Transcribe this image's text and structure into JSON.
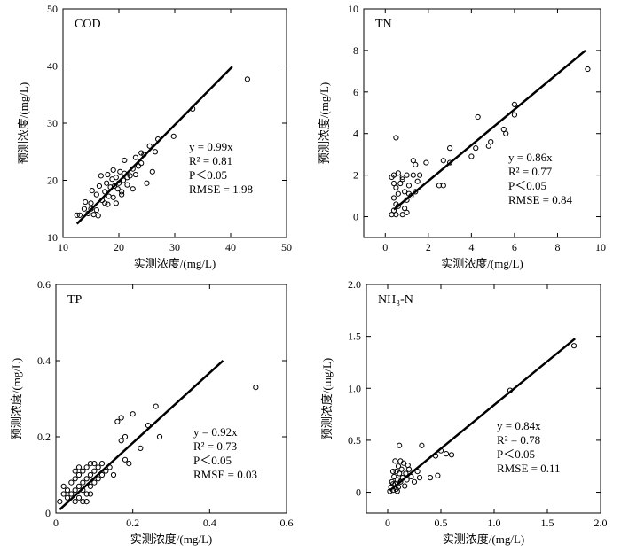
{
  "chart_data": [
    {
      "type": "scatter",
      "title": "COD",
      "xlabel": "实测浓度/(mg/L)",
      "ylabel": "预测浓度/(mg/L)",
      "xlim": [
        10,
        50
      ],
      "ylim": [
        10,
        50
      ],
      "xticks": [
        "10",
        "20",
        "30",
        "40",
        "50"
      ],
      "yticks": [
        "10",
        "20",
        "30",
        "40",
        "50"
      ],
      "fit_line": {
        "slope": 0.99,
        "x_start": 12.5,
        "x_end": 40.3
      },
      "stats": {
        "eq_label": "y = 0.99x",
        "r2_label": "R² = 0.81",
        "p_label": "P＜0.05",
        "rmse_label": "RMSE = 1.98"
      },
      "points": [
        [
          12.5,
          13.9
        ],
        [
          13.0,
          13.9
        ],
        [
          13.8,
          15.0
        ],
        [
          14.0,
          16.2
        ],
        [
          14.5,
          14.2
        ],
        [
          15.0,
          15.0
        ],
        [
          15.5,
          14.0
        ],
        [
          16.0,
          14.8
        ],
        [
          15.2,
          18.2
        ],
        [
          16.0,
          17.5
        ],
        [
          16.5,
          19.0
        ],
        [
          16.8,
          20.8
        ],
        [
          17.0,
          16.5
        ],
        [
          17.5,
          18.0
        ],
        [
          17.8,
          19.5
        ],
        [
          18.0,
          21.0
        ],
        [
          18.2,
          17.2
        ],
        [
          18.5,
          18.8
        ],
        [
          18.8,
          20.2
        ],
        [
          19.0,
          17.0
        ],
        [
          19.2,
          19.0
        ],
        [
          19.5,
          20.5
        ],
        [
          19.8,
          18.5
        ],
        [
          20.0,
          19.5
        ],
        [
          20.2,
          21.5
        ],
        [
          20.5,
          18.0
        ],
        [
          20.8,
          20.0
        ],
        [
          21.0,
          21.2
        ],
        [
          21.5,
          19.2
        ],
        [
          22.0,
          20.8
        ],
        [
          22.5,
          22.0
        ],
        [
          23.0,
          21.0
        ],
        [
          23.5,
          22.5
        ],
        [
          24.0,
          23.0
        ],
        [
          24.5,
          24.5
        ],
        [
          25.0,
          19.5
        ],
        [
          25.5,
          26.0
        ],
        [
          26.0,
          21.5
        ],
        [
          26.5,
          25.0
        ],
        [
          27.0,
          27.2
        ],
        [
          24.0,
          24.8
        ],
        [
          22.5,
          18.5
        ],
        [
          19.5,
          16.0
        ],
        [
          20.5,
          17.5
        ],
        [
          21.0,
          23.5
        ],
        [
          23.0,
          24.0
        ],
        [
          17.5,
          16.0
        ],
        [
          16.3,
          13.8
        ],
        [
          15.0,
          16.0
        ],
        [
          18.0,
          15.8
        ],
        [
          21.5,
          20.5
        ],
        [
          19.0,
          21.8
        ],
        [
          29.8,
          27.7
        ],
        [
          33.2,
          32.5
        ],
        [
          43.0,
          37.7
        ]
      ]
    },
    {
      "type": "scatter",
      "title": "TN",
      "xlabel": "实测浓度/(mg/L)",
      "ylabel": "预测浓度/(mg/L)",
      "xlim": [
        -1,
        10
      ],
      "ylim": [
        -1,
        10
      ],
      "xticks": [
        "0",
        "2",
        "4",
        "6",
        "8",
        "10"
      ],
      "yticks": [
        "0",
        "2",
        "4",
        "6",
        "8",
        "10"
      ],
      "fit_line": {
        "slope": 0.86,
        "x_start": 0.4,
        "x_end": 9.3
      },
      "stats": {
        "eq_label": "y = 0.86x",
        "r2_label": "R² = 0.77",
        "p_label": "P＜0.05",
        "rmse_label": "RMSE = 0.84"
      },
      "points": [
        [
          0.3,
          0.1
        ],
        [
          0.4,
          0.3
        ],
        [
          0.5,
          0.6
        ],
        [
          0.4,
          0.9
        ],
        [
          0.6,
          1.1
        ],
        [
          0.5,
          1.4
        ],
        [
          0.7,
          1.6
        ],
        [
          0.8,
          1.9
        ],
        [
          0.6,
          2.1
        ],
        [
          0.9,
          1.2
        ],
        [
          1.0,
          0.8
        ],
        [
          1.1,
          1.5
        ],
        [
          1.2,
          1.0
        ],
        [
          1.3,
          2.0
        ],
        [
          1.4,
          1.2
        ],
        [
          1.5,
          1.7
        ],
        [
          0.3,
          1.9
        ],
        [
          0.4,
          2.0
        ],
        [
          0.5,
          0.1
        ],
        [
          0.8,
          0.1
        ],
        [
          1.0,
          0.2
        ],
        [
          0.6,
          0.5
        ],
        [
          0.9,
          0.4
        ],
        [
          1.1,
          1.1
        ],
        [
          1.3,
          2.7
        ],
        [
          1.4,
          2.5
        ],
        [
          1.6,
          2.0
        ],
        [
          0.8,
          1.8
        ],
        [
          0.4,
          1.6
        ],
        [
          1.0,
          2.0
        ],
        [
          1.9,
          2.6
        ],
        [
          2.5,
          1.5
        ],
        [
          2.7,
          1.5
        ],
        [
          2.7,
          2.7
        ],
        [
          3.0,
          3.3
        ],
        [
          3.0,
          2.6
        ],
        [
          4.0,
          2.9
        ],
        [
          4.2,
          3.3
        ],
        [
          4.3,
          4.8
        ],
        [
          4.8,
          3.4
        ],
        [
          4.9,
          3.6
        ],
        [
          5.5,
          4.2
        ],
        [
          5.6,
          4.0
        ],
        [
          6.0,
          4.9
        ],
        [
          6.0,
          5.4
        ],
        [
          0.5,
          3.8
        ],
        [
          9.4,
          7.1
        ]
      ]
    },
    {
      "type": "scatter",
      "title": "TP",
      "xlabel": "实测浓度/(mg/L)",
      "ylabel": "预测浓度/(mg/L)",
      "xlim": [
        0,
        0.6
      ],
      "ylim": [
        0,
        0.6
      ],
      "xticks": [
        "0",
        "0.2",
        "0.4",
        "0.6"
      ],
      "yticks": [
        "0",
        "0.2",
        "0.4",
        "0.6"
      ],
      "fit_line": {
        "slope": 0.92,
        "x_start": 0.01,
        "x_end": 0.435
      },
      "stats": {
        "eq_label": "y = 0.92x",
        "r2_label": "R² = 0.73",
        "p_label": "P＜0.05",
        "rmse_label": "RMSE = 0.03"
      },
      "points": [
        [
          0.01,
          0.03
        ],
        [
          0.02,
          0.05
        ],
        [
          0.02,
          0.07
        ],
        [
          0.03,
          0.04
        ],
        [
          0.03,
          0.06
        ],
        [
          0.04,
          0.05
        ],
        [
          0.04,
          0.08
        ],
        [
          0.05,
          0.03
        ],
        [
          0.05,
          0.06
        ],
        [
          0.05,
          0.09
        ],
        [
          0.06,
          0.07
        ],
        [
          0.06,
          0.1
        ],
        [
          0.07,
          0.06
        ],
        [
          0.07,
          0.08
        ],
        [
          0.07,
          0.11
        ],
        [
          0.08,
          0.05
        ],
        [
          0.08,
          0.09
        ],
        [
          0.08,
          0.12
        ],
        [
          0.09,
          0.07
        ],
        [
          0.09,
          0.1
        ],
        [
          0.1,
          0.08
        ],
        [
          0.1,
          0.11
        ],
        [
          0.1,
          0.13
        ],
        [
          0.11,
          0.09
        ],
        [
          0.11,
          0.12
        ],
        [
          0.12,
          0.1
        ],
        [
          0.12,
          0.13
        ],
        [
          0.13,
          0.11
        ],
        [
          0.14,
          0.12
        ],
        [
          0.15,
          0.1
        ],
        [
          0.06,
          0.04
        ],
        [
          0.07,
          0.03
        ],
        [
          0.08,
          0.03
        ],
        [
          0.09,
          0.05
        ],
        [
          0.09,
          0.13
        ],
        [
          0.06,
          0.12
        ],
        [
          0.05,
          0.11
        ],
        [
          0.16,
          0.24
        ],
        [
          0.17,
          0.25
        ],
        [
          0.17,
          0.19
        ],
        [
          0.18,
          0.2
        ],
        [
          0.18,
          0.14
        ],
        [
          0.19,
          0.13
        ],
        [
          0.2,
          0.26
        ],
        [
          0.22,
          0.17
        ],
        [
          0.24,
          0.23
        ],
        [
          0.26,
          0.28
        ],
        [
          0.27,
          0.2
        ],
        [
          0.52,
          0.33
        ]
      ]
    },
    {
      "type": "scatter",
      "title": "NH₃-N",
      "xlabel": "实测浓度/(mg/L)",
      "ylabel": "预测浓度/(mg/L)",
      "xlim": [
        -0.2,
        2.0
      ],
      "ylim": [
        -0.2,
        2.0
      ],
      "xticks": [
        "0",
        "0.5",
        "1.0",
        "1.5",
        "2.0"
      ],
      "yticks": [
        "0",
        "0.5",
        "1.0",
        "1.5",
        "2.0"
      ],
      "fit_line": {
        "slope": 0.84,
        "x_start": 0.02,
        "x_end": 1.76
      },
      "stats": {
        "eq_label": "y = 0.84x",
        "r2_label": "R² = 0.78",
        "p_label": "P＜0.05",
        "rmse_label": "RMSE = 0.11"
      },
      "points": [
        [
          0.02,
          0.01
        ],
        [
          0.03,
          0.05
        ],
        [
          0.04,
          0.1
        ],
        [
          0.05,
          0.02
        ],
        [
          0.06,
          0.15
        ],
        [
          0.07,
          0.08
        ],
        [
          0.08,
          0.2
        ],
        [
          0.08,
          0.03
        ],
        [
          0.09,
          0.12
        ],
        [
          0.1,
          0.25
        ],
        [
          0.1,
          0.05
        ],
        [
          0.11,
          0.18
        ],
        [
          0.12,
          0.1
        ],
        [
          0.12,
          0.3
        ],
        [
          0.13,
          0.22
        ],
        [
          0.14,
          0.14
        ],
        [
          0.15,
          0.28
        ],
        [
          0.16,
          0.06
        ],
        [
          0.17,
          0.18
        ],
        [
          0.18,
          0.12
        ],
        [
          0.19,
          0.26
        ],
        [
          0.2,
          0.22
        ],
        [
          0.05,
          0.08
        ],
        [
          0.09,
          0.01
        ],
        [
          0.11,
          0.45
        ],
        [
          0.22,
          0.15
        ],
        [
          0.25,
          0.1
        ],
        [
          0.28,
          0.2
        ],
        [
          0.3,
          0.14
        ],
        [
          0.32,
          0.45
        ],
        [
          0.4,
          0.14
        ],
        [
          0.45,
          0.35
        ],
        [
          0.5,
          0.4
        ],
        [
          0.55,
          0.37
        ],
        [
          0.6,
          0.36
        ],
        [
          0.47,
          0.16
        ],
        [
          1.15,
          0.98
        ],
        [
          1.75,
          1.41
        ],
        [
          0.05,
          0.2
        ],
        [
          0.07,
          0.3
        ]
      ]
    }
  ]
}
